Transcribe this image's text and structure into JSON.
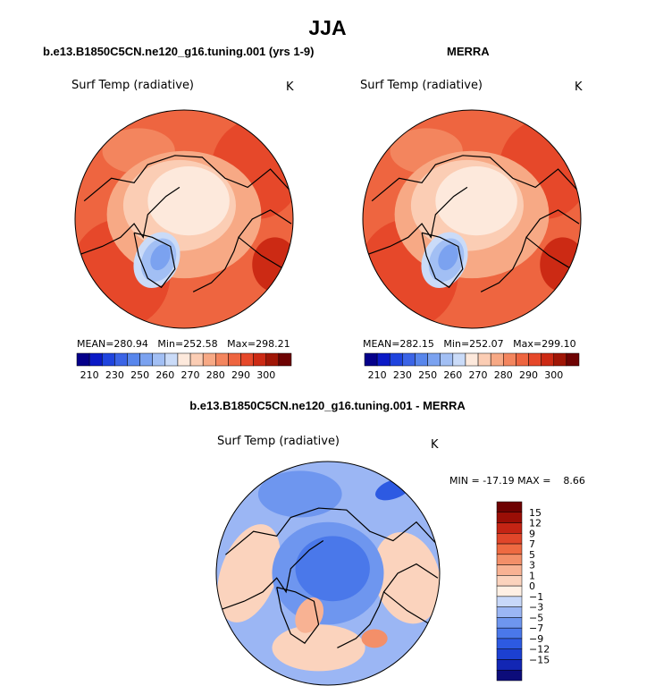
{
  "page": {
    "season": "JJA",
    "left_title": "b.e13.B1850C5CN.ne120_g16.tuning.001 (yrs 1-9)",
    "right_title": "MERRA",
    "diff_title": "b.e13.B1850C5CN.ne120_g16.tuning.001 - MERRA"
  },
  "colors": {
    "main_scale": [
      "#05008a",
      "#0b1ac6",
      "#1f44de",
      "#3b64e6",
      "#5886ec",
      "#7ba2f0",
      "#a2bff4",
      "#cadbf8",
      "#fde9dc",
      "#fbcdb4",
      "#f7a985",
      "#f3855e",
      "#ee6540",
      "#e6482a",
      "#cc2a14",
      "#a01606",
      "#6e0303"
    ],
    "diff_scale": [
      "#0c0c7a",
      "#1226b4",
      "#1c40d2",
      "#2d5ae2",
      "#4a78ea",
      "#6e96ef",
      "#9bb6f4",
      "#c8d8f9",
      "#fff0e4",
      "#fbd3bd",
      "#f8b293",
      "#f38f69",
      "#ee6a42",
      "#e0462a",
      "#c42414",
      "#9a0e06",
      "#6e0202"
    ]
  },
  "chart_data": [
    {
      "type": "heatmap",
      "projection": "north-polar-stereographic",
      "title": "b.e13.B1850C5CN.ne120_g16.tuning.001 (yrs 1-9)",
      "variable": "Surf Temp (radiative)",
      "units": "K",
      "stats": {
        "mean_label": "MEAN=",
        "mean": "280.94",
        "min_label": "Min=",
        "min": "252.58",
        "max_label": "Max=",
        "max": "298.21"
      },
      "colorbar_ticks": [
        "210",
        "230",
        "250",
        "260",
        "270",
        "280",
        "290",
        "300"
      ]
    },
    {
      "type": "heatmap",
      "projection": "north-polar-stereographic",
      "title": "MERRA",
      "variable": "Surf Temp (radiative)",
      "units": "K",
      "stats": {
        "mean_label": "MEAN=",
        "mean": "282.15",
        "min_label": "Min=",
        "min": "252.07",
        "max_label": "Max=",
        "max": "299.10"
      },
      "colorbar_ticks": [
        "210",
        "230",
        "250",
        "260",
        "270",
        "280",
        "290",
        "300"
      ]
    },
    {
      "type": "heatmap",
      "projection": "north-polar-stereographic",
      "title": "b.e13.B1850C5CN.ne120_g16.tuning.001 - MERRA",
      "variable": "Surf Temp (radiative)",
      "units": "K",
      "stats": {
        "min_label": "MIN =",
        "min": "-17.19",
        "max_label": "MAX =",
        "max": "8.66"
      },
      "colorbar_ticks": [
        "15",
        "12",
        "9",
        "7",
        "5",
        "3",
        "1",
        "0",
        "−1",
        "−3",
        "−5",
        "−7",
        "−9",
        "−12",
        "−15"
      ]
    }
  ]
}
